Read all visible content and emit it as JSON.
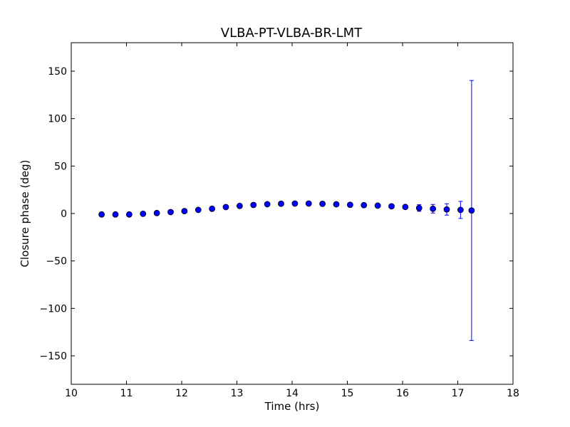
{
  "chart_data": {
    "type": "scatter",
    "title": "VLBA-PT-VLBA-BR-LMT",
    "xlabel": "Time (hrs)",
    "ylabel": "Closure phase (deg)",
    "xlim": [
      10,
      18
    ],
    "ylim": [
      -180,
      180
    ],
    "xticks": [
      10,
      11,
      12,
      13,
      14,
      15,
      16,
      17,
      18
    ],
    "yticks": [
      -150,
      -100,
      -50,
      0,
      50,
      100,
      150
    ],
    "xtick_labels": [
      "10",
      "11",
      "12",
      "13",
      "14",
      "15",
      "16",
      "17",
      "18"
    ],
    "ytick_labels": [
      "−150",
      "−100",
      "−50",
      "0",
      "50",
      "100",
      "150"
    ],
    "grid": false,
    "colors": {
      "marker": "#0000ff",
      "marker_edge": "#000000",
      "errorbar": "#0000ff"
    },
    "series": [
      {
        "marker": "circle",
        "points": [
          {
            "x": 10.55,
            "y": -1.0,
            "err": 0.3
          },
          {
            "x": 10.8,
            "y": -1.0,
            "err": 0.3
          },
          {
            "x": 11.05,
            "y": -1.0,
            "err": 0.3
          },
          {
            "x": 11.3,
            "y": -0.3,
            "err": 0.3
          },
          {
            "x": 11.55,
            "y": 0.5,
            "err": 0.3
          },
          {
            "x": 11.8,
            "y": 1.5,
            "err": 0.3
          },
          {
            "x": 12.05,
            "y": 2.5,
            "err": 0.4
          },
          {
            "x": 12.3,
            "y": 3.8,
            "err": 0.4
          },
          {
            "x": 12.55,
            "y": 5.0,
            "err": 0.4
          },
          {
            "x": 12.8,
            "y": 6.8,
            "err": 0.4
          },
          {
            "x": 13.05,
            "y": 8.0,
            "err": 0.4
          },
          {
            "x": 13.3,
            "y": 9.0,
            "err": 0.4
          },
          {
            "x": 13.55,
            "y": 9.8,
            "err": 0.4
          },
          {
            "x": 13.8,
            "y": 10.3,
            "err": 0.4
          },
          {
            "x": 14.05,
            "y": 10.5,
            "err": 0.4
          },
          {
            "x": 14.3,
            "y": 10.5,
            "err": 0.5
          },
          {
            "x": 14.55,
            "y": 10.2,
            "err": 0.5
          },
          {
            "x": 14.8,
            "y": 9.7,
            "err": 0.5
          },
          {
            "x": 15.05,
            "y": 9.2,
            "err": 0.6
          },
          {
            "x": 15.3,
            "y": 8.8,
            "err": 0.7
          },
          {
            "x": 15.55,
            "y": 8.3,
            "err": 0.8
          },
          {
            "x": 15.8,
            "y": 7.6,
            "err": 1.0
          },
          {
            "x": 16.05,
            "y": 6.9,
            "err": 2.0
          },
          {
            "x": 16.3,
            "y": 5.8,
            "err": 3.5
          },
          {
            "x": 16.55,
            "y": 5.0,
            "err": 4.5
          },
          {
            "x": 16.8,
            "y": 4.3,
            "err": 6.0
          },
          {
            "x": 17.05,
            "y": 3.8,
            "err": 9.0
          },
          {
            "x": 17.25,
            "y": 3.2,
            "err": 137.0
          }
        ]
      }
    ]
  }
}
